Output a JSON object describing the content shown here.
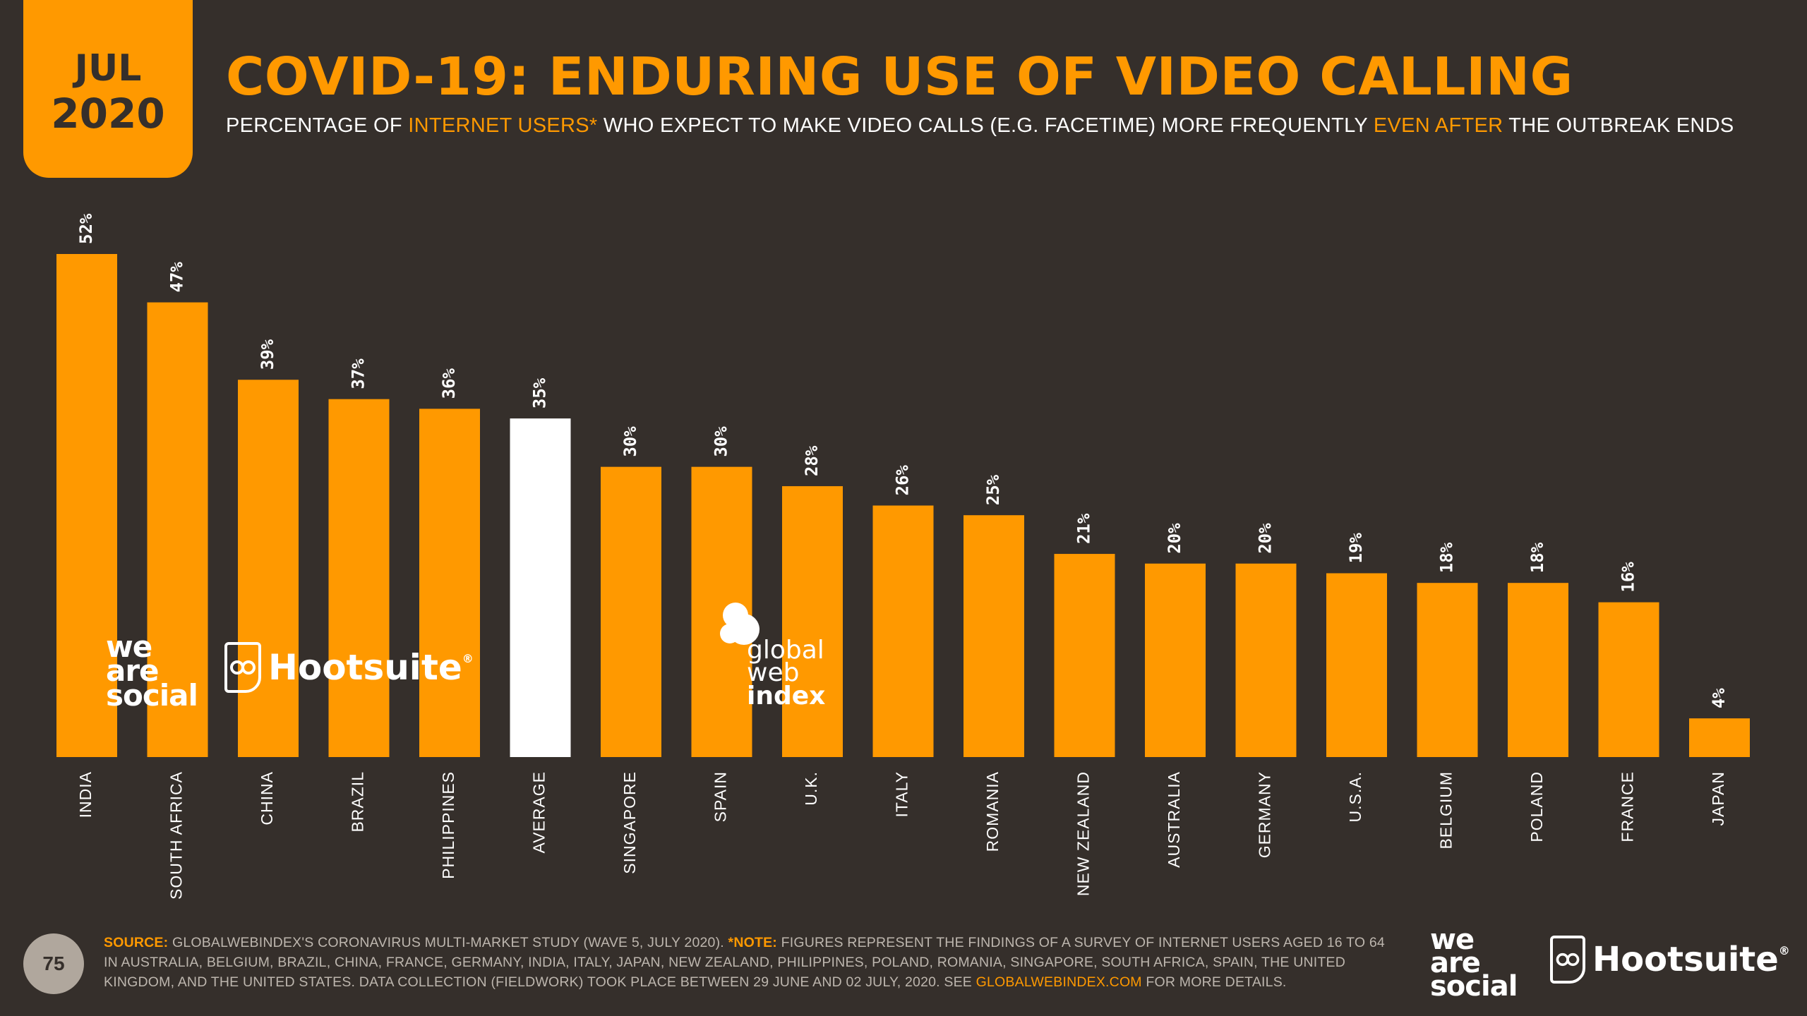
{
  "header": {
    "month": "JUL",
    "year": "2020",
    "title": "COVID-19: ENDURING USE OF VIDEO CALLING",
    "subtitle": {
      "part1": "PERCENTAGE OF ",
      "hl1": "INTERNET USERS*",
      "part2": " WHO EXPECT TO MAKE VIDEO CALLS (E.G. FACETIME) MORE FREQUENTLY ",
      "hl2": "EVEN AFTER",
      "part3": " THE OUTBREAK ENDS"
    }
  },
  "colors": {
    "background": "#352f2b",
    "accent": "#ff9900",
    "highlight_bar": "#ffffff",
    "text": "#ffffff"
  },
  "chart_data": {
    "type": "bar",
    "categories": [
      "INDIA",
      "SOUTH AFRICA",
      "CHINA",
      "BRAZIL",
      "PHILIPPINES",
      "AVERAGE",
      "SINGAPORE",
      "SPAIN",
      "U.K.",
      "ITALY",
      "ROMANIA",
      "NEW ZEALAND",
      "AUSTRALIA",
      "GERMANY",
      "U.S.A.",
      "BELGIUM",
      "POLAND",
      "FRANCE",
      "JAPAN"
    ],
    "values": [
      52,
      47,
      39,
      37,
      36,
      35,
      30,
      30,
      28,
      26,
      25,
      21,
      20,
      20,
      19,
      18,
      18,
      16,
      4
    ],
    "value_labels": [
      "52%",
      "47%",
      "39%",
      "37%",
      "36%",
      "35%",
      "30%",
      "30%",
      "28%",
      "26%",
      "25%",
      "21%",
      "20%",
      "20%",
      "19%",
      "18%",
      "18%",
      "16%",
      "4%"
    ],
    "highlight_category": "AVERAGE",
    "ylim": [
      0,
      52
    ],
    "grid": false,
    "legend": "none"
  },
  "watermarks": {
    "we_are_social": [
      "we",
      "are",
      "social"
    ],
    "hootsuite": "Hootsuite",
    "hootsuite_mark": "®",
    "gwi": [
      "global",
      "web",
      "index"
    ]
  },
  "footer": {
    "source_label": "SOURCE:",
    "source_text": " GLOBALWEBINDEX'S CORONAVIRUS MULTI-MARKET STUDY (WAVE 5, JULY 2020). ",
    "note_label": "*NOTE:",
    "note_text": " FIGURES REPRESENT THE FINDINGS OF A SURVEY OF INTERNET USERS AGED 16 TO 64 IN AUSTRALIA, BELGIUM, BRAZIL, CHINA, FRANCE, GERMANY, INDIA, ITALY, JAPAN, NEW ZEALAND, PHILIPPINES, POLAND, ROMANIA, SINGAPORE, SOUTH AFRICA, SPAIN, THE UNITED KINGDOM, AND THE UNITED STATES. DATA COLLECTION (FIELDWORK) TOOK PLACE BETWEEN 29 JUNE AND 02 JULY, 2020. SEE ",
    "link_text": "GLOBALWEBINDEX.COM",
    "end_text": " FOR MORE DETAILS.",
    "page_number": "75"
  }
}
